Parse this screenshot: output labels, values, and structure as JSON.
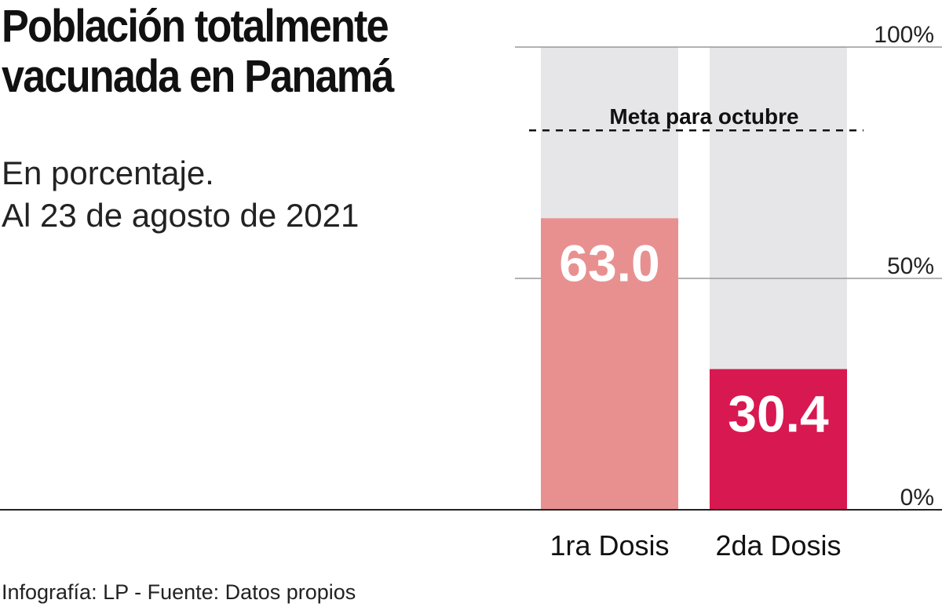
{
  "header": {
    "title_line1": "Población totalmente",
    "title_line2": "vacunada en Panamá",
    "subtitle_line1": "En porcentaje.",
    "subtitle_line2": "Al 23 de agosto de 2021"
  },
  "footer": {
    "source": "Infografía: LP - Fuente: Datos propios"
  },
  "colors": {
    "background_bar": "#e6e6e8",
    "first_dose": "#e89090",
    "second_dose": "#d81850",
    "gridline": "#999999",
    "baseline": "#222222"
  },
  "chart_data": {
    "type": "bar",
    "title": "Población totalmente vacunada en Panamá",
    "subtitle": "En porcentaje. Al 23 de agosto de 2021",
    "categories": [
      "1ra Dosis",
      "2da Dosis"
    ],
    "values": [
      63.0,
      30.4
    ],
    "value_labels": [
      "63.0",
      "30.4"
    ],
    "ylim": [
      0,
      100
    ],
    "yticks": [
      0,
      50,
      100
    ],
    "ytick_labels": [
      "0%",
      "50%",
      "100%"
    ],
    "xlabel": "",
    "ylabel": "",
    "goal_line": {
      "value": 82,
      "label": "Meta para octubre"
    }
  }
}
